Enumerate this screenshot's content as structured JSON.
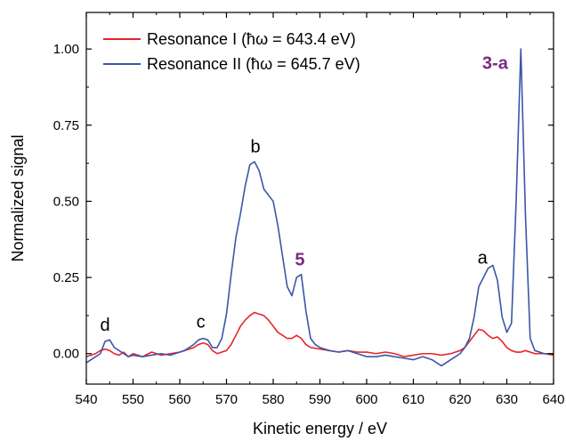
{
  "chart_data": {
    "type": "line",
    "title": "",
    "xlabel": "Kinetic energy / eV",
    "ylabel": "Normalized signal",
    "xlim": [
      540,
      640
    ],
    "ylim": [
      -0.1,
      1.12
    ],
    "x_ticks": [
      540,
      550,
      560,
      570,
      580,
      590,
      600,
      610,
      620,
      630,
      640
    ],
    "x_tick_labels": [
      "540",
      "550",
      "560",
      "570",
      "580",
      "590",
      "600",
      "610",
      "620",
      "630",
      "640"
    ],
    "y_ticks": [
      0,
      0.25,
      0.5,
      0.75,
      1.0
    ],
    "y_tick_labels": [
      "0.00",
      "0.25",
      "0.50",
      "0.75",
      "1.00"
    ],
    "grid": false,
    "legend_position": "top-left",
    "series": [
      {
        "name": "Resonance I (ħω = 643.4 eV)",
        "color": "#e8232a",
        "x": [
          540,
          541,
          542,
          543,
          544,
          545,
          546,
          547,
          548,
          549,
          550,
          552,
          554,
          556,
          558,
          560,
          561,
          562,
          563,
          564,
          565,
          566,
          567,
          568,
          569,
          570,
          571,
          572,
          573,
          574,
          575,
          576,
          577,
          578,
          579,
          580,
          581,
          582,
          583,
          584,
          585,
          586,
          587,
          588,
          590,
          592,
          594,
          596,
          598,
          600,
          602,
          604,
          606,
          608,
          610,
          612,
          614,
          616,
          618,
          619,
          620,
          621,
          622,
          623,
          624,
          625,
          626,
          627,
          628,
          629,
          630,
          631,
          632,
          633,
          634,
          636,
          638,
          640
        ],
        "y": [
          -0.01,
          -0.005,
          0.0,
          0.01,
          0.015,
          0.01,
          0.0,
          -0.005,
          0.005,
          -0.01,
          0.0,
          -0.01,
          0.005,
          -0.005,
          0.0,
          0.005,
          0.01,
          0.015,
          0.02,
          0.03,
          0.035,
          0.03,
          0.01,
          0.0,
          0.005,
          0.01,
          0.03,
          0.06,
          0.09,
          0.11,
          0.125,
          0.135,
          0.13,
          0.125,
          0.11,
          0.09,
          0.07,
          0.06,
          0.05,
          0.05,
          0.06,
          0.05,
          0.03,
          0.02,
          0.015,
          0.01,
          0.005,
          0.01,
          0.005,
          0.005,
          0.0,
          0.005,
          0.0,
          -0.01,
          -0.005,
          0.0,
          0.0,
          -0.005,
          0.0,
          0.005,
          0.01,
          0.02,
          0.04,
          0.06,
          0.08,
          0.075,
          0.06,
          0.05,
          0.055,
          0.04,
          0.02,
          0.01,
          0.005,
          0.005,
          0.01,
          0.0,
          0.0,
          -0.005
        ]
      },
      {
        "name": "Resonance II (ħω = 645.7 eV)",
        "color": "#3a57a7",
        "x": [
          540,
          541,
          542,
          543,
          544,
          545,
          546,
          547,
          548,
          549,
          550,
          552,
          554,
          556,
          558,
          560,
          561,
          562,
          563,
          564,
          565,
          566,
          567,
          568,
          569,
          570,
          571,
          572,
          573,
          574,
          575,
          576,
          577,
          578,
          579,
          580,
          581,
          582,
          583,
          584,
          585,
          586,
          587,
          588,
          589,
          590,
          592,
          594,
          596,
          598,
          600,
          602,
          604,
          606,
          608,
          610,
          612,
          614,
          615,
          616,
          617,
          618,
          619,
          620,
          621,
          622,
          623,
          624,
          625,
          626,
          627,
          628,
          629,
          630,
          631,
          632,
          633,
          634,
          635,
          636,
          638,
          640
        ],
        "y": [
          -0.03,
          -0.02,
          -0.01,
          0.0,
          0.04,
          0.045,
          0.02,
          0.01,
          0.0,
          -0.01,
          -0.005,
          -0.01,
          -0.005,
          0.0,
          -0.005,
          0.005,
          0.01,
          0.02,
          0.03,
          0.045,
          0.05,
          0.045,
          0.02,
          0.02,
          0.05,
          0.13,
          0.26,
          0.38,
          0.46,
          0.55,
          0.62,
          0.63,
          0.6,
          0.54,
          0.52,
          0.5,
          0.42,
          0.32,
          0.22,
          0.19,
          0.25,
          0.26,
          0.14,
          0.05,
          0.03,
          0.02,
          0.01,
          0.005,
          0.01,
          0.0,
          -0.01,
          -0.01,
          -0.005,
          -0.01,
          -0.015,
          -0.02,
          -0.01,
          -0.02,
          -0.03,
          -0.04,
          -0.03,
          -0.02,
          -0.01,
          0.0,
          0.02,
          0.05,
          0.12,
          0.22,
          0.25,
          0.28,
          0.29,
          0.24,
          0.12,
          0.07,
          0.1,
          0.5,
          1.0,
          0.45,
          0.05,
          0.01,
          0.0,
          0.0
        ]
      }
    ],
    "annotations": [
      {
        "text": "d",
        "x": 544,
        "y": 0.075,
        "bold": false,
        "color": "#000000"
      },
      {
        "text": "c",
        "x": 564.5,
        "y": 0.085,
        "bold": false,
        "color": "#000000"
      },
      {
        "text": "b",
        "x": 576.2,
        "y": 0.66,
        "bold": false,
        "color": "#000000"
      },
      {
        "text": "5",
        "x": 585.7,
        "y": 0.29,
        "bold": true,
        "color": "#7a2a82"
      },
      {
        "text": "a",
        "x": 624.8,
        "y": 0.295,
        "bold": false,
        "color": "#000000"
      },
      {
        "text": "3-a",
        "x": 627.5,
        "y": 0.935,
        "bold": true,
        "color": "#7a2a82"
      }
    ]
  }
}
